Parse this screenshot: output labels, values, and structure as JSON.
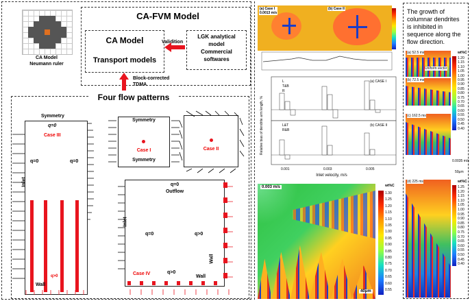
{
  "left": {
    "ca_grid_caption_1": "CA Model",
    "ca_grid_caption_2": "Neumann ruler",
    "cafvm_title": "CA-FVM Model",
    "ca_model_label": "CA Model",
    "transport_label": "Transport models",
    "validation_label": "Validition",
    "lgk_line1": "LGK analytical",
    "lgk_line2": "model",
    "lgk_line3": "Commercial",
    "lgk_line4": "softwares",
    "tdma_line1": "Block-corrected",
    "tdma_line2": "TDMA",
    "four_flow_title": "Four flow patterns",
    "case3": {
      "symmetry": "Symmetry",
      "q_top": "q=0",
      "case": "Case III",
      "q_left": "q=0",
      "q_right": "q=0",
      "inlet": "Inlet",
      "wall": "Wall",
      "q_pos": "q>0"
    },
    "case1": {
      "symmetry_top": "Symmetry",
      "case": "Case I",
      "symmetry_bottom": "Symmetry"
    },
    "case2": {
      "case": "Case II"
    },
    "case4": {
      "q_top": "q=0",
      "outflow": "Outflow",
      "inlet": "Inlet",
      "q_left": "q=0",
      "q_right": "q>0",
      "q_bottom": "q>0",
      "case": "Case IV",
      "wall_bottom": "Wall",
      "wall_right": "Wall"
    }
  },
  "right": {
    "top_panel_a": "(a) Case I",
    "top_panel_a_speed": "0.0013 m/s",
    "top_panel_b": "(b) Case II",
    "bar_chart": {
      "ylabel": "Relative bias of dendrite arm length, %",
      "xlabel": "Inlet velocity, m/s",
      "panel_a": "(a) CASE I",
      "panel_b": "(b) CASE II",
      "legend_a": [
        "L",
        "T&B",
        "R"
      ],
      "legend_b": [
        "L&T",
        "R&B"
      ],
      "xticks": [
        "0.001",
        "0.003",
        "0.005"
      ]
    },
    "sim_speed": "0.003 m/s",
    "colorbar_title": "wt%C",
    "colorbar_ticks": [
      "1.30",
      "1.25",
      "1.20",
      "1.15",
      "1.10",
      "1.05",
      "1.00",
      "0.95",
      "0.90",
      "0.85",
      "0.80",
      "0.75",
      "0.70",
      "0.65",
      "0.60",
      "0.55",
      "0.50"
    ],
    "scale_bar": "40μm"
  },
  "far_right": {
    "description_1": "The growth of",
    "description_2": "columnar dendrites",
    "description_3": "is inhibited in",
    "description_4": "sequence along the",
    "description_5": "flow direction.",
    "frame_a": "(a) 52.5 ms",
    "frame_b": "(b) 72.5 ms",
    "frame_c": "(c) 162.5 ms",
    "frame_d": "(d) 225 ms",
    "uniform_vector": "Uniform vector",
    "colorbar_title": "wt%C",
    "speed": "0.0035 m/s",
    "scale": "50μm",
    "ticks_top": [
      "1.20",
      "1.15",
      "1.10",
      "1.05",
      "1.00",
      "0.95",
      "0.90",
      "0.85",
      "0.80",
      "0.75",
      "0.70",
      "0.65",
      "0.60",
      "0.55",
      "0.50",
      "0.45",
      "0.40"
    ],
    "ticks_bottom": [
      "1.25",
      "1.20",
      "1.15",
      "1.10",
      "1.05",
      "1.00",
      "0.95",
      "0.90",
      "0.85",
      "0.80",
      "0.75",
      "0.70",
      "0.65",
      "0.60",
      "0.55",
      "0.50",
      "0.45",
      "0.40"
    ]
  },
  "colors": {
    "accent_red": "#e8141e",
    "sim_yellow": "#f0c020",
    "dendrite_blue": "#1a3cc8"
  }
}
